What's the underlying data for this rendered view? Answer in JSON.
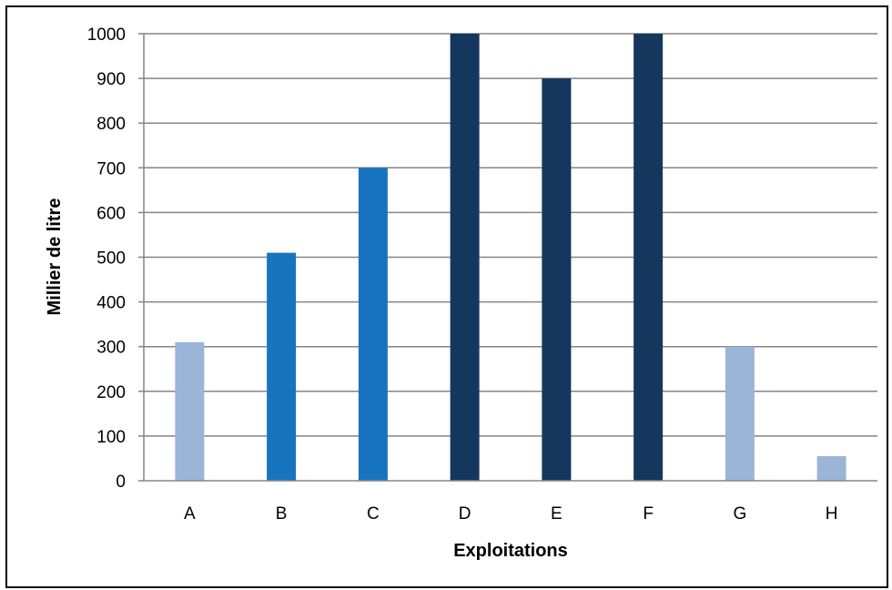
{
  "chart_data": {
    "type": "bar",
    "title": "",
    "xlabel": "Exploitations",
    "ylabel": "Millier de litre",
    "categories": [
      "A",
      "B",
      "C",
      "D",
      "E",
      "F",
      "G",
      "H"
    ],
    "values": [
      310,
      510,
      700,
      1000,
      900,
      1000,
      300,
      55
    ],
    "bar_colors": [
      "#9bb5d9",
      "#1874be",
      "#1874be",
      "#15375e",
      "#15375e",
      "#15375e",
      "#9bb5d9",
      "#9bb5d9"
    ],
    "ylim": [
      0,
      1000
    ],
    "yticks": [
      0,
      100,
      200,
      300,
      400,
      500,
      600,
      700,
      800,
      900,
      1000
    ],
    "grid": true,
    "legend": "none",
    "gridline_color": "#858585",
    "axis_line_color": "#868686"
  }
}
